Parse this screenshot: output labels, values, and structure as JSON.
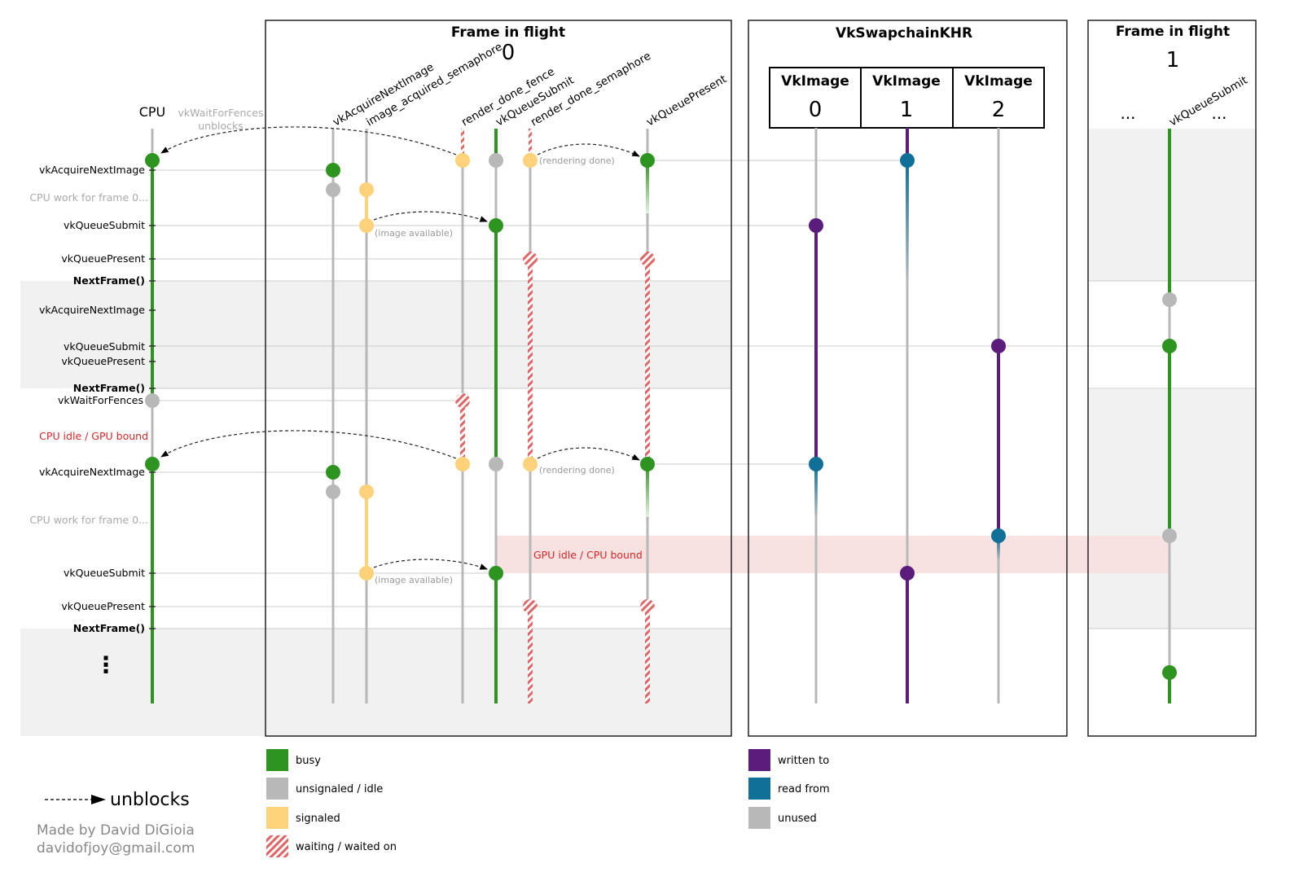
{
  "colors": {
    "busy": "#2e9420",
    "idle": "#b8b8b8",
    "signaled": "#fdd27a",
    "waiting": "#e06666",
    "written": "#5c1c7c",
    "read": "#0f6f96",
    "unused": "#b8b8b8",
    "shade": "#f1f1f1",
    "gpu_idle_band": "#f7e1e1"
  },
  "cpu": {
    "title": "CPU",
    "wait_note_line1": "vkWaitForFences",
    "wait_note_line2": "unblocks",
    "rows": [
      {
        "label": "vkAcquireNextImage",
        "style": "normal"
      },
      {
        "label": "CPU work for frame 0...",
        "style": "grey"
      },
      {
        "label": "vkQueueSubmit",
        "style": "normal"
      },
      {
        "label": "vkQueuePresent",
        "style": "normal"
      },
      {
        "label": "NextFrame()",
        "style": "bold"
      },
      {
        "label": "vkAcquireNextImage",
        "style": "normal"
      },
      {
        "label": "vkQueueSubmit",
        "style": "normal"
      },
      {
        "label": "vkQueuePresent",
        "style": "normal"
      },
      {
        "label": "NextFrame()",
        "style": "bold"
      },
      {
        "label": "vkWaitForFences",
        "style": "normal"
      },
      {
        "label": "CPU idle / GPU bound",
        "style": "red"
      },
      {
        "label": "vkAcquireNextImage",
        "style": "normal"
      },
      {
        "label": "CPU work for frame 0...",
        "style": "grey"
      },
      {
        "label": "vkQueueSubmit",
        "style": "normal"
      },
      {
        "label": "vkQueuePresent",
        "style": "normal"
      },
      {
        "label": "NextFrame()",
        "style": "bold"
      }
    ],
    "ellipsis": "⋮"
  },
  "frame0": {
    "title": "Frame in flight",
    "index": "0",
    "columns": [
      "vkAcquireNextImage",
      "image_acquired_semaphore",
      "render_done_fence",
      "vkQueueSubmit",
      "render_done_semaphore",
      "vkQueuePresent"
    ],
    "notes": {
      "rendering_done": "(rendering done)",
      "image_available": "(image available)",
      "gpu_idle": "GPU idle / CPU bound"
    }
  },
  "swapchain": {
    "title": "VkSwapchainKHR",
    "images": [
      {
        "title": "VkImage",
        "index": "0"
      },
      {
        "title": "VkImage",
        "index": "1"
      },
      {
        "title": "VkImage",
        "index": "2"
      }
    ]
  },
  "frame1": {
    "title": "Frame in flight",
    "index": "1",
    "column": "vkQueueSubmit",
    "ellipsis_left": "...",
    "ellipsis_right": "..."
  },
  "legend": {
    "left": [
      {
        "key": "busy",
        "label": "busy"
      },
      {
        "key": "idle",
        "label": "unsignaled / idle"
      },
      {
        "key": "signaled",
        "label": "signaled"
      },
      {
        "key": "waiting",
        "label": "waiting / waited on"
      }
    ],
    "right": [
      {
        "key": "written",
        "label": "written to"
      },
      {
        "key": "read",
        "label": "read from"
      },
      {
        "key": "unused",
        "label": "unused"
      }
    ],
    "unblocks_label": "unblocks"
  },
  "credit": {
    "line1": "Made by David DiGioia",
    "line2": "davidofjoy@gmail.com"
  }
}
